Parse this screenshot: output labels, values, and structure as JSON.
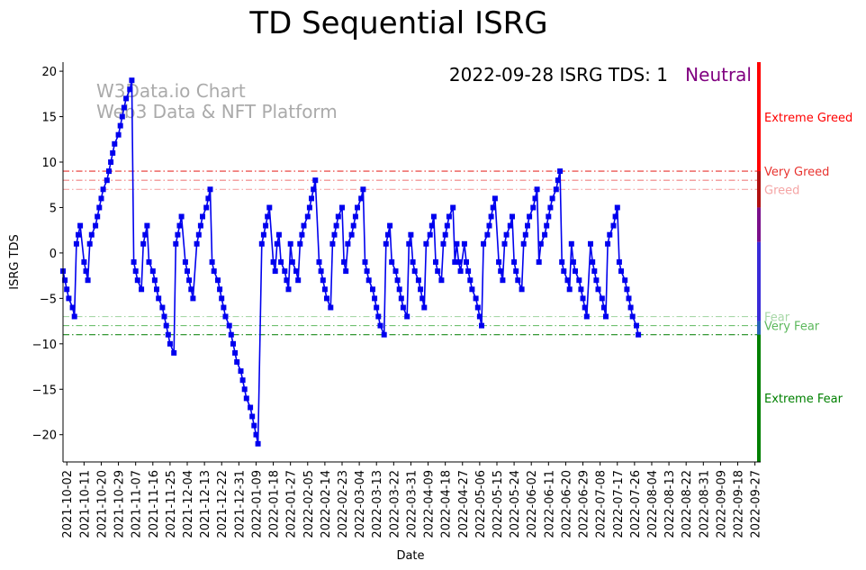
{
  "chart_data": {
    "type": "line",
    "title": "TD Sequential ISRG",
    "xlabel": "Date",
    "ylabel": "ISRG TDS",
    "ylim": [
      -23,
      21
    ],
    "yticks": [
      20,
      15,
      10,
      5,
      0,
      -5,
      -10,
      -15,
      -20
    ],
    "xticks": [
      "2021-10-02",
      "2021-10-11",
      "2021-10-20",
      "2021-10-29",
      "2021-11-07",
      "2021-11-16",
      "2021-11-25",
      "2021-12-04",
      "2021-12-13",
      "2021-12-22",
      "2021-12-31",
      "2022-01-09",
      "2022-01-18",
      "2022-01-27",
      "2022-02-05",
      "2022-02-14",
      "2022-02-23",
      "2022-03-04",
      "2022-03-13",
      "2022-03-22",
      "2022-03-31",
      "2022-04-09",
      "2022-04-18",
      "2022-04-27",
      "2022-05-06",
      "2022-05-15",
      "2022-05-24",
      "2022-06-02",
      "2022-06-11",
      "2022-06-20",
      "2022-06-29",
      "2022-07-08",
      "2022-07-17",
      "2022-07-26",
      "2022-08-04",
      "2022-08-13",
      "2022-08-22",
      "2022-08-31",
      "2022-09-09",
      "2022-09-18",
      "2022-09-27"
    ],
    "x_start": "2021-09-30",
    "x_end": "2022-09-30",
    "series": [
      {
        "name": "ISRG TDS",
        "color": "#0000ee",
        "points": [
          [
            "2021-09-30",
            -2
          ],
          [
            "2021-10-01",
            -3
          ],
          [
            "2021-10-02",
            -4
          ],
          [
            "2021-10-03",
            -5
          ],
          [
            "2021-10-05",
            -6
          ],
          [
            "2021-10-06",
            -7
          ],
          [
            "2021-10-07",
            1
          ],
          [
            "2021-10-08",
            2
          ],
          [
            "2021-10-09",
            3
          ],
          [
            "2021-10-11",
            -1
          ],
          [
            "2021-10-12",
            -2
          ],
          [
            "2021-10-13",
            -3
          ],
          [
            "2021-10-14",
            1
          ],
          [
            "2021-10-15",
            2
          ],
          [
            "2021-10-17",
            3
          ],
          [
            "2021-10-18",
            4
          ],
          [
            "2021-10-19",
            5
          ],
          [
            "2021-10-20",
            6
          ],
          [
            "2021-10-21",
            7
          ],
          [
            "2021-10-23",
            8
          ],
          [
            "2021-10-24",
            9
          ],
          [
            "2021-10-25",
            10
          ],
          [
            "2021-10-26",
            11
          ],
          [
            "2021-10-27",
            12
          ],
          [
            "2021-10-29",
            13
          ],
          [
            "2021-10-30",
            14
          ],
          [
            "2021-10-31",
            15
          ],
          [
            "2021-11-01",
            16
          ],
          [
            "2021-11-02",
            17
          ],
          [
            "2021-11-04",
            18
          ],
          [
            "2021-11-05",
            19
          ],
          [
            "2021-11-06",
            -1
          ],
          [
            "2021-11-07",
            -2
          ],
          [
            "2021-11-08",
            -3
          ],
          [
            "2021-11-10",
            -4
          ],
          [
            "2021-11-11",
            1
          ],
          [
            "2021-11-12",
            2
          ],
          [
            "2021-11-13",
            3
          ],
          [
            "2021-11-14",
            -1
          ],
          [
            "2021-11-16",
            -2
          ],
          [
            "2021-11-17",
            -3
          ],
          [
            "2021-11-18",
            -4
          ],
          [
            "2021-11-19",
            -5
          ],
          [
            "2021-11-21",
            -6
          ],
          [
            "2021-11-22",
            -7
          ],
          [
            "2021-11-23",
            -8
          ],
          [
            "2021-11-24",
            -9
          ],
          [
            "2021-11-25",
            -10
          ],
          [
            "2021-11-27",
            -11
          ],
          [
            "2021-11-28",
            1
          ],
          [
            "2021-11-29",
            2
          ],
          [
            "2021-11-30",
            3
          ],
          [
            "2021-12-01",
            4
          ],
          [
            "2021-12-03",
            -1
          ],
          [
            "2021-12-04",
            -2
          ],
          [
            "2021-12-05",
            -3
          ],
          [
            "2021-12-06",
            -4
          ],
          [
            "2021-12-07",
            -5
          ],
          [
            "2021-12-09",
            1
          ],
          [
            "2021-12-10",
            2
          ],
          [
            "2021-12-11",
            3
          ],
          [
            "2021-12-12",
            4
          ],
          [
            "2021-12-14",
            5
          ],
          [
            "2021-12-15",
            6
          ],
          [
            "2021-12-16",
            7
          ],
          [
            "2021-12-17",
            -1
          ],
          [
            "2021-12-18",
            -2
          ],
          [
            "2021-12-20",
            -3
          ],
          [
            "2021-12-21",
            -4
          ],
          [
            "2021-12-22",
            -5
          ],
          [
            "2021-12-23",
            -6
          ],
          [
            "2021-12-24",
            -7
          ],
          [
            "2021-12-26",
            -8
          ],
          [
            "2021-12-27",
            -9
          ],
          [
            "2021-12-28",
            -10
          ],
          [
            "2021-12-29",
            -11
          ],
          [
            "2021-12-30",
            -12
          ],
          [
            "2022-01-01",
            -13
          ],
          [
            "2022-01-02",
            -14
          ],
          [
            "2022-01-03",
            -15
          ],
          [
            "2022-01-04",
            -16
          ],
          [
            "2022-01-06",
            -17
          ],
          [
            "2022-01-07",
            -18
          ],
          [
            "2022-01-08",
            -19
          ],
          [
            "2022-01-09",
            -20
          ],
          [
            "2022-01-10",
            -21
          ],
          [
            "2022-01-12",
            1
          ],
          [
            "2022-01-13",
            2
          ],
          [
            "2022-01-14",
            3
          ],
          [
            "2022-01-15",
            4
          ],
          [
            "2022-01-16",
            5
          ],
          [
            "2022-01-18",
            -1
          ],
          [
            "2022-01-19",
            -2
          ],
          [
            "2022-01-20",
            1
          ],
          [
            "2022-01-21",
            2
          ],
          [
            "2022-01-22",
            -1
          ],
          [
            "2022-01-24",
            -2
          ],
          [
            "2022-01-25",
            -3
          ],
          [
            "2022-01-26",
            -4
          ],
          [
            "2022-01-27",
            1
          ],
          [
            "2022-01-28",
            -1
          ],
          [
            "2022-01-30",
            -2
          ],
          [
            "2022-01-31",
            -3
          ],
          [
            "2022-02-01",
            1
          ],
          [
            "2022-02-02",
            2
          ],
          [
            "2022-02-03",
            3
          ],
          [
            "2022-02-05",
            4
          ],
          [
            "2022-02-06",
            5
          ],
          [
            "2022-02-07",
            6
          ],
          [
            "2022-02-08",
            7
          ],
          [
            "2022-02-09",
            8
          ],
          [
            "2022-02-11",
            -1
          ],
          [
            "2022-02-12",
            -2
          ],
          [
            "2022-02-13",
            -3
          ],
          [
            "2022-02-14",
            -4
          ],
          [
            "2022-02-15",
            -5
          ],
          [
            "2022-02-17",
            -6
          ],
          [
            "2022-02-18",
            1
          ],
          [
            "2022-02-19",
            2
          ],
          [
            "2022-02-20",
            3
          ],
          [
            "2022-02-21",
            4
          ],
          [
            "2022-02-23",
            5
          ],
          [
            "2022-02-24",
            -1
          ],
          [
            "2022-02-25",
            -2
          ],
          [
            "2022-02-26",
            1
          ],
          [
            "2022-02-28",
            2
          ],
          [
            "2022-03-01",
            3
          ],
          [
            "2022-03-02",
            4
          ],
          [
            "2022-03-03",
            5
          ],
          [
            "2022-03-05",
            6
          ],
          [
            "2022-03-06",
            7
          ],
          [
            "2022-03-07",
            -1
          ],
          [
            "2022-03-08",
            -2
          ],
          [
            "2022-03-09",
            -3
          ],
          [
            "2022-03-11",
            -4
          ],
          [
            "2022-03-12",
            -5
          ],
          [
            "2022-03-13",
            -6
          ],
          [
            "2022-03-14",
            -7
          ],
          [
            "2022-03-15",
            -8
          ],
          [
            "2022-03-17",
            -9
          ],
          [
            "2022-03-18",
            1
          ],
          [
            "2022-03-19",
            2
          ],
          [
            "2022-03-20",
            3
          ],
          [
            "2022-03-21",
            -1
          ],
          [
            "2022-03-23",
            -2
          ],
          [
            "2022-03-24",
            -3
          ],
          [
            "2022-03-25",
            -4
          ],
          [
            "2022-03-26",
            -5
          ],
          [
            "2022-03-27",
            -6
          ],
          [
            "2022-03-29",
            -7
          ],
          [
            "2022-03-30",
            1
          ],
          [
            "2022-03-31",
            2
          ],
          [
            "2022-04-01",
            -1
          ],
          [
            "2022-04-02",
            -2
          ],
          [
            "2022-04-04",
            -3
          ],
          [
            "2022-04-05",
            -4
          ],
          [
            "2022-04-06",
            -5
          ],
          [
            "2022-04-07",
            -6
          ],
          [
            "2022-04-08",
            1
          ],
          [
            "2022-04-10",
            2
          ],
          [
            "2022-04-11",
            3
          ],
          [
            "2022-04-12",
            4
          ],
          [
            "2022-04-13",
            -1
          ],
          [
            "2022-04-14",
            -2
          ],
          [
            "2022-04-16",
            -3
          ],
          [
            "2022-04-17",
            1
          ],
          [
            "2022-04-18",
            2
          ],
          [
            "2022-04-19",
            3
          ],
          [
            "2022-04-20",
            4
          ],
          [
            "2022-04-22",
            5
          ],
          [
            "2022-04-23",
            -1
          ],
          [
            "2022-04-24",
            1
          ],
          [
            "2022-04-25",
            -1
          ],
          [
            "2022-04-26",
            -2
          ],
          [
            "2022-04-28",
            1
          ],
          [
            "2022-04-29",
            -1
          ],
          [
            "2022-04-30",
            -2
          ],
          [
            "2022-05-01",
            -3
          ],
          [
            "2022-05-02",
            -4
          ],
          [
            "2022-05-04",
            -5
          ],
          [
            "2022-05-05",
            -6
          ],
          [
            "2022-05-06",
            -7
          ],
          [
            "2022-05-07",
            -8
          ],
          [
            "2022-05-08",
            1
          ],
          [
            "2022-05-10",
            2
          ],
          [
            "2022-05-11",
            3
          ],
          [
            "2022-05-12",
            4
          ],
          [
            "2022-05-13",
            5
          ],
          [
            "2022-05-14",
            6
          ],
          [
            "2022-05-16",
            -1
          ],
          [
            "2022-05-17",
            -2
          ],
          [
            "2022-05-18",
            -3
          ],
          [
            "2022-05-19",
            1
          ],
          [
            "2022-05-20",
            2
          ],
          [
            "2022-05-22",
            3
          ],
          [
            "2022-05-23",
            4
          ],
          [
            "2022-05-24",
            -1
          ],
          [
            "2022-05-25",
            -2
          ],
          [
            "2022-05-26",
            -3
          ],
          [
            "2022-05-28",
            -4
          ],
          [
            "2022-05-29",
            1
          ],
          [
            "2022-05-30",
            2
          ],
          [
            "2022-05-31",
            3
          ],
          [
            "2022-06-01",
            4
          ],
          [
            "2022-06-03",
            5
          ],
          [
            "2022-06-04",
            6
          ],
          [
            "2022-06-05",
            7
          ],
          [
            "2022-06-06",
            -1
          ],
          [
            "2022-06-07",
            1
          ],
          [
            "2022-06-09",
            2
          ],
          [
            "2022-06-10",
            3
          ],
          [
            "2022-06-11",
            4
          ],
          [
            "2022-06-12",
            5
          ],
          [
            "2022-06-13",
            6
          ],
          [
            "2022-06-15",
            7
          ],
          [
            "2022-06-16",
            8
          ],
          [
            "2022-06-17",
            9
          ],
          [
            "2022-06-18",
            -1
          ],
          [
            "2022-06-19",
            -2
          ],
          [
            "2022-06-21",
            -3
          ],
          [
            "2022-06-22",
            -4
          ],
          [
            "2022-06-23",
            1
          ],
          [
            "2022-06-24",
            -1
          ],
          [
            "2022-06-25",
            -2
          ],
          [
            "2022-06-27",
            -3
          ],
          [
            "2022-06-28",
            -4
          ],
          [
            "2022-06-29",
            -5
          ],
          [
            "2022-06-30",
            -6
          ],
          [
            "2022-07-01",
            -7
          ],
          [
            "2022-07-03",
            1
          ],
          [
            "2022-07-04",
            -1
          ],
          [
            "2022-07-05",
            -2
          ],
          [
            "2022-07-06",
            -3
          ],
          [
            "2022-07-07",
            -4
          ],
          [
            "2022-07-09",
            -5
          ],
          [
            "2022-07-10",
            -6
          ],
          [
            "2022-07-11",
            -7
          ],
          [
            "2022-07-12",
            1
          ],
          [
            "2022-07-13",
            2
          ],
          [
            "2022-07-15",
            3
          ],
          [
            "2022-07-16",
            4
          ],
          [
            "2022-07-17",
            5
          ],
          [
            "2022-07-18",
            -1
          ],
          [
            "2022-07-19",
            -2
          ],
          [
            "2022-07-21",
            -3
          ],
          [
            "2022-07-22",
            -4
          ],
          [
            "2022-07-23",
            -5
          ],
          [
            "2022-07-24",
            -6
          ],
          [
            "2022-07-25",
            -7
          ],
          [
            "2022-07-27",
            -8
          ],
          [
            "2022-07-28",
            -9
          ]
        ]
      }
    ],
    "reference_lines": [
      {
        "label": "Very Greed",
        "value": 9,
        "color": "#e8332f"
      },
      {
        "label": "",
        "value": 8,
        "color": "#f08080"
      },
      {
        "label": "Greed",
        "value": 7,
        "color": "#f5a5a5"
      },
      {
        "label": "Fear",
        "value": -7,
        "color": "#a8d8a8"
      },
      {
        "label": "Very Fear",
        "value": -8,
        "color": "#5cb85c"
      },
      {
        "label": "",
        "value": -9,
        "color": "#1a8a1a"
      }
    ],
    "zones": [
      {
        "label": "Extreme Greed",
        "color": "#ff0000"
      },
      {
        "label": "Extreme Fear",
        "color": "#008000"
      }
    ],
    "annotation": {
      "date_text": "2022-09-28 ISRG TDS: 1",
      "status_text": "Neutral",
      "status_color": "#800080"
    },
    "watermark": {
      "line1": "W3Data.io Chart",
      "line2": "Web3 Data & NFT Platform"
    }
  }
}
